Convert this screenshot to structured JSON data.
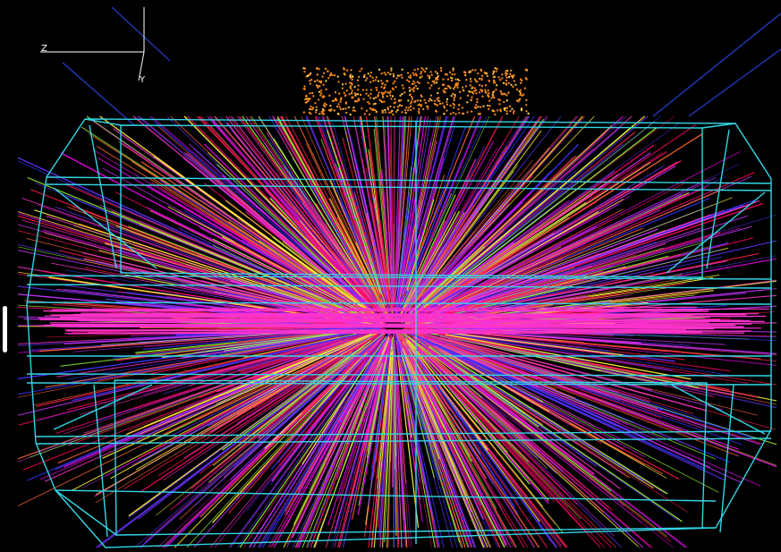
{
  "axes": {
    "z_label": "Z",
    "y_label": "Y"
  },
  "colors": {
    "background": "#000000",
    "detector_wireframe": "#33d6e6",
    "axes": "#ffffff",
    "calorimeter_hits": "#ff8c1a",
    "tracks": [
      "#ff1a4d",
      "#ff33cc",
      "#cc33ff",
      "#3333ff",
      "#ffee33",
      "#99ff33",
      "#ff6633",
      "#ff0066",
      "#e600e6",
      "#6633ff"
    ]
  },
  "icons": {
    "axis_triad": "axis-triad-icon",
    "side_handle": "drag-handle-icon"
  }
}
